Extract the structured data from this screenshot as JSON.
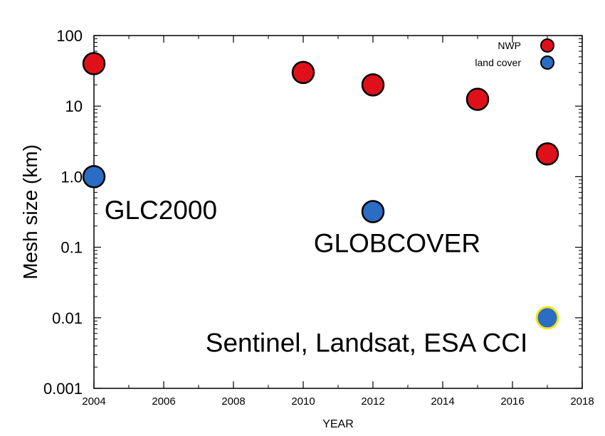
{
  "chart_data": {
    "type": "scatter",
    "title": "",
    "xlabel": "YEAR",
    "ylabel": "Mesh size (km)",
    "xlim": [
      2004,
      2018
    ],
    "ylim": [
      0.001,
      100
    ],
    "yscale": "log",
    "grid": false,
    "legend_position": "top-right",
    "x_ticks": [
      "2004",
      "2006",
      "2008",
      "2010",
      "2012",
      "2014",
      "2016",
      "2018"
    ],
    "y_ticks": [
      {
        "value": 100,
        "label": "100"
      },
      {
        "value": 10,
        "label": "10"
      },
      {
        "value": 1,
        "label": "1.0"
      },
      {
        "value": 0.1,
        "label": "0.1"
      },
      {
        "value": 0.01,
        "label": "0.01"
      },
      {
        "value": 0.001,
        "label": "0.001"
      }
    ],
    "series": [
      {
        "name": "NWP",
        "color": "#e0101a",
        "points": [
          {
            "x": 2004,
            "y": 40
          },
          {
            "x": 2010,
            "y": 30
          },
          {
            "x": 2012,
            "y": 20
          },
          {
            "x": 2015,
            "y": 12.5
          },
          {
            "x": 2017,
            "y": 2.1
          }
        ]
      },
      {
        "name": "land cover",
        "color": "#2b6cc4",
        "points": [
          {
            "x": 2004,
            "y": 1.0
          },
          {
            "x": 2012,
            "y": 0.32
          },
          {
            "x": 2017,
            "y": 0.01,
            "outline": "#f2e51a"
          }
        ]
      }
    ],
    "annotations": [
      {
        "text": "GLC2000",
        "x": 2004.3,
        "y": 0.25
      },
      {
        "text": "GLOBCOVER",
        "x": 2010.3,
        "y": 0.085
      },
      {
        "text": "Sentinel, Landsat, ESA CCI",
        "x": 2007.2,
        "y": 0.0033
      }
    ]
  }
}
